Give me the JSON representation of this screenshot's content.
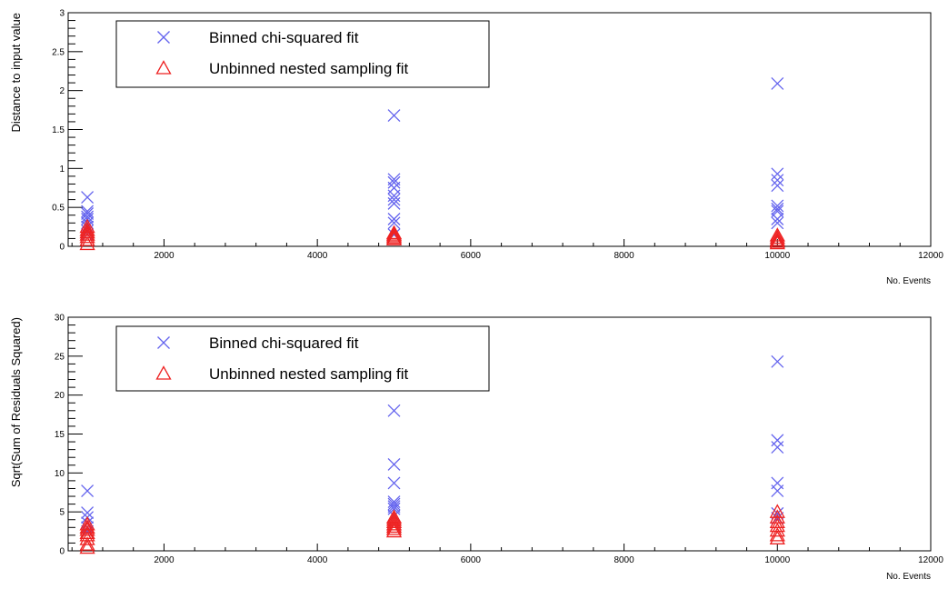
{
  "chart_data": [
    {
      "type": "scatter",
      "xlabel": "No. Events",
      "ylabel": "Distance to input value",
      "xlim": [
        750,
        12000
      ],
      "ylim": [
        0,
        3
      ],
      "x_ticks": [
        2000,
        4000,
        6000,
        8000,
        10000,
        12000
      ],
      "y_ticks": [
        0,
        0.5,
        1,
        1.5,
        2,
        2.5,
        3
      ],
      "y_tick_labels": [
        "0",
        "0.5",
        "1",
        "1.5",
        "2",
        "2.5",
        "3"
      ],
      "grid": false,
      "legend_position": "top-left",
      "series": [
        {
          "name": "Binned chi-squared fit",
          "marker": "x",
          "color": "#6464ee",
          "x": [
            1000,
            1000,
            1000,
            1000,
            1000,
            1000,
            1000,
            1000,
            1000,
            5000,
            5000,
            5000,
            5000,
            5000,
            5000,
            5000,
            5000,
            5000,
            5000,
            10000,
            10000,
            10000,
            10000,
            10000,
            10000,
            10000,
            10000,
            10000
          ],
          "y": [
            0.63,
            0.45,
            0.42,
            0.38,
            0.35,
            0.3,
            0.25,
            0.2,
            0.15,
            1.68,
            0.86,
            0.82,
            0.75,
            0.65,
            0.6,
            0.55,
            0.35,
            0.3,
            0.15,
            2.09,
            0.93,
            0.85,
            0.78,
            0.52,
            0.48,
            0.45,
            0.35,
            0.3
          ]
        },
        {
          "name": "Unbinned nested sampling fit",
          "marker": "triangle",
          "color": "#ee2222",
          "x": [
            1000,
            1000,
            1000,
            1000,
            1000,
            1000,
            1000,
            5000,
            5000,
            5000,
            5000,
            5000,
            10000,
            10000,
            10000,
            10000,
            10000
          ],
          "y": [
            0.25,
            0.21,
            0.18,
            0.15,
            0.12,
            0.08,
            0.03,
            0.17,
            0.15,
            0.13,
            0.11,
            0.09,
            0.14,
            0.11,
            0.08,
            0.06,
            0.04
          ]
        }
      ]
    },
    {
      "type": "scatter",
      "xlabel": "No. Events",
      "ylabel": "Sqrt(Sum of Residuals Squared)",
      "xlim": [
        750,
        12000
      ],
      "ylim": [
        0,
        30
      ],
      "x_ticks": [
        2000,
        4000,
        6000,
        8000,
        10000,
        12000
      ],
      "y_ticks": [
        0,
        5,
        10,
        15,
        20,
        25,
        30
      ],
      "y_tick_labels": [
        "0",
        "5",
        "10",
        "15",
        "20",
        "25",
        "30"
      ],
      "grid": false,
      "legend_position": "top-left",
      "series": [
        {
          "name": "Binned chi-squared fit",
          "marker": "x",
          "color": "#6464ee",
          "x": [
            1000,
            1000,
            1000,
            1000,
            1000,
            1000,
            5000,
            5000,
            5000,
            5000,
            5000,
            5000,
            5000,
            5000,
            10000,
            10000,
            10000,
            10000,
            10000,
            10000,
            10000
          ],
          "y": [
            7.7,
            4.9,
            4.3,
            3.6,
            3.0,
            2.5,
            18.0,
            11.1,
            8.7,
            6.3,
            6.0,
            5.7,
            5.4,
            4.5,
            24.3,
            14.2,
            13.3,
            8.7,
            7.7,
            4.8,
            4.2
          ],
          "name_visible": true
        },
        {
          "name": "Unbinned nested sampling fit",
          "marker": "triangle",
          "color": "#ee2222",
          "x": [
            1000,
            1000,
            1000,
            1000,
            1000,
            1000,
            1000,
            1000,
            5000,
            5000,
            5000,
            5000,
            5000,
            5000,
            5000,
            10000,
            10000,
            10000,
            10000,
            10000,
            10000,
            10000
          ],
          "y": [
            3.4,
            3.0,
            2.7,
            2.3,
            2.0,
            1.5,
            0.8,
            0.4,
            4.3,
            4.0,
            3.7,
            3.4,
            3.1,
            2.8,
            2.5,
            5.0,
            4.3,
            3.7,
            3.2,
            2.6,
            2.0,
            1.6
          ]
        }
      ]
    }
  ]
}
